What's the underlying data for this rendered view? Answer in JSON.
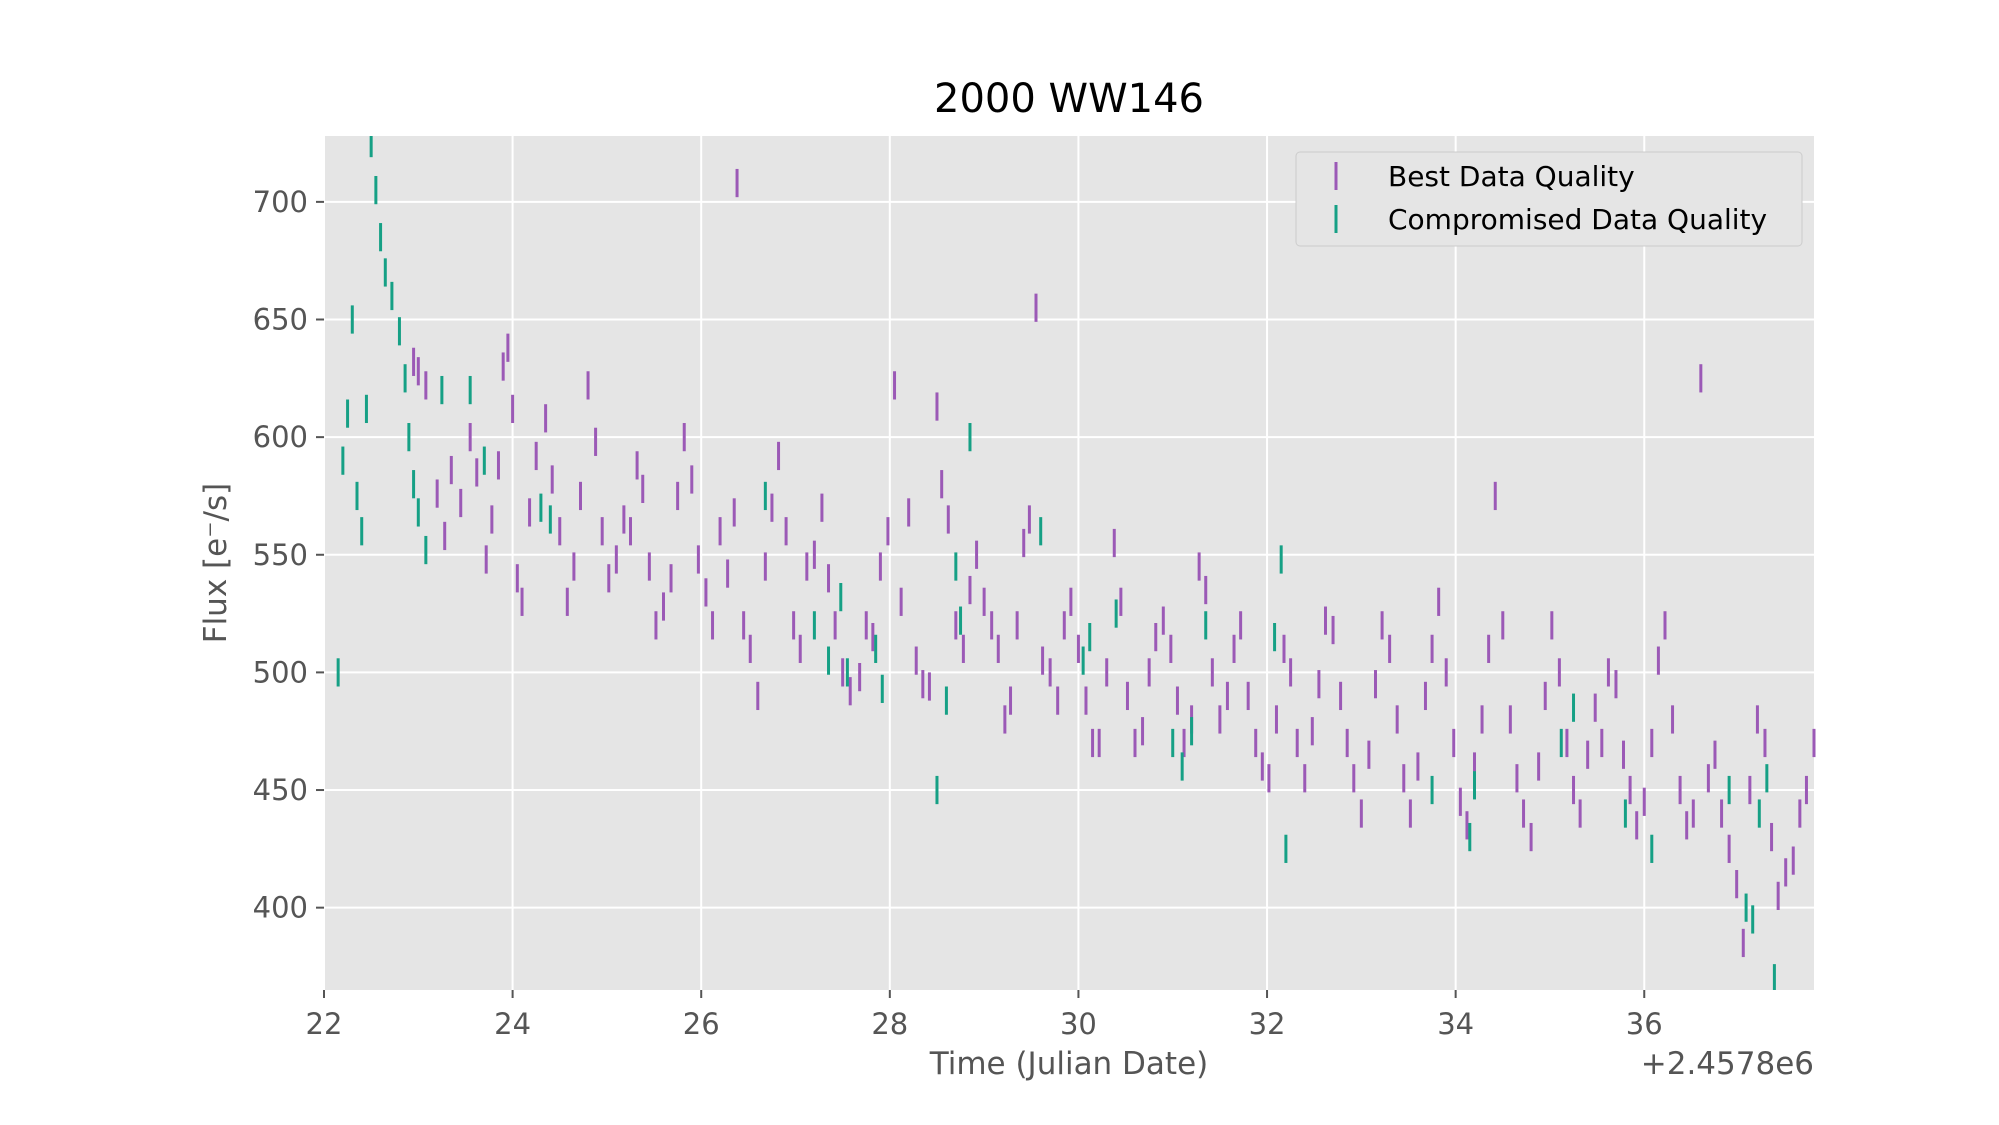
{
  "chart_data": {
    "type": "scatter",
    "title": "2000 WW146",
    "xlabel": "Time (Julian Date)",
    "ylabel": "Flux [e⁻/s]",
    "x_offset_label": "+2.4578e6",
    "xlim": [
      22.0,
      37.8
    ],
    "ylim": [
      365,
      728
    ],
    "x_ticks": [
      22,
      24,
      26,
      28,
      30,
      32,
      34,
      36
    ],
    "y_ticks": [
      400,
      450,
      500,
      550,
      600,
      650,
      700
    ],
    "grid": true,
    "legend": "top-right",
    "error_bar": 6,
    "series": [
      {
        "name": "Best Data Quality",
        "color": "#9b59b6",
        "points": [
          [
            22.95,
            632
          ],
          [
            23.0,
            628
          ],
          [
            23.08,
            622
          ],
          [
            23.2,
            576
          ],
          [
            23.28,
            558
          ],
          [
            23.35,
            586
          ],
          [
            23.45,
            572
          ],
          [
            23.55,
            600
          ],
          [
            23.62,
            585
          ],
          [
            23.72,
            548
          ],
          [
            23.78,
            565
          ],
          [
            23.85,
            588
          ],
          [
            23.9,
            630
          ],
          [
            23.95,
            638
          ],
          [
            24.0,
            612
          ],
          [
            24.05,
            540
          ],
          [
            24.1,
            530
          ],
          [
            24.18,
            568
          ],
          [
            24.25,
            592
          ],
          [
            24.35,
            608
          ],
          [
            24.42,
            582
          ],
          [
            24.5,
            560
          ],
          [
            24.58,
            530
          ],
          [
            24.65,
            545
          ],
          [
            24.72,
            575
          ],
          [
            24.8,
            622
          ],
          [
            24.88,
            598
          ],
          [
            24.95,
            560
          ],
          [
            25.02,
            540
          ],
          [
            25.1,
            548
          ],
          [
            25.18,
            565
          ],
          [
            25.25,
            560
          ],
          [
            25.32,
            588
          ],
          [
            25.38,
            578
          ],
          [
            25.45,
            545
          ],
          [
            25.52,
            520
          ],
          [
            25.6,
            528
          ],
          [
            25.68,
            540
          ],
          [
            25.75,
            575
          ],
          [
            25.82,
            600
          ],
          [
            25.9,
            582
          ],
          [
            25.97,
            548
          ],
          [
            26.05,
            534
          ],
          [
            26.12,
            520
          ],
          [
            26.2,
            560
          ],
          [
            26.28,
            542
          ],
          [
            26.35,
            568
          ],
          [
            26.38,
            708
          ],
          [
            26.45,
            520
          ],
          [
            26.52,
            510
          ],
          [
            26.6,
            490
          ],
          [
            26.68,
            545
          ],
          [
            26.75,
            570
          ],
          [
            26.82,
            592
          ],
          [
            26.9,
            560
          ],
          [
            26.98,
            520
          ],
          [
            27.05,
            510
          ],
          [
            27.12,
            545
          ],
          [
            27.2,
            550
          ],
          [
            27.28,
            570
          ],
          [
            27.35,
            540
          ],
          [
            27.42,
            520
          ],
          [
            27.5,
            500
          ],
          [
            27.58,
            492
          ],
          [
            27.68,
            498
          ],
          [
            27.75,
            520
          ],
          [
            27.82,
            515
          ],
          [
            27.9,
            545
          ],
          [
            27.98,
            560
          ],
          [
            28.05,
            622
          ],
          [
            28.12,
            530
          ],
          [
            28.2,
            568
          ],
          [
            28.28,
            505
          ],
          [
            28.35,
            495
          ],
          [
            28.42,
            494
          ],
          [
            28.5,
            613
          ],
          [
            28.55,
            580
          ],
          [
            28.62,
            565
          ],
          [
            28.7,
            520
          ],
          [
            28.78,
            510
          ],
          [
            28.85,
            535
          ],
          [
            28.92,
            550
          ],
          [
            29.0,
            530
          ],
          [
            29.08,
            520
          ],
          [
            29.15,
            510
          ],
          [
            29.22,
            480
          ],
          [
            29.28,
            488
          ],
          [
            29.35,
            520
          ],
          [
            29.42,
            555
          ],
          [
            29.48,
            565
          ],
          [
            29.55,
            655
          ],
          [
            29.62,
            505
          ],
          [
            29.7,
            500
          ],
          [
            29.78,
            488
          ],
          [
            29.85,
            520
          ],
          [
            29.92,
            530
          ],
          [
            30.0,
            510
          ],
          [
            30.08,
            488
          ],
          [
            30.15,
            470
          ],
          [
            30.22,
            470
          ],
          [
            30.3,
            500
          ],
          [
            30.38,
            555
          ],
          [
            30.45,
            530
          ],
          [
            30.52,
            490
          ],
          [
            30.6,
            470
          ],
          [
            30.68,
            475
          ],
          [
            30.75,
            500
          ],
          [
            30.82,
            515
          ],
          [
            30.9,
            522
          ],
          [
            30.98,
            510
          ],
          [
            31.05,
            488
          ],
          [
            31.12,
            470
          ],
          [
            31.2,
            480
          ],
          [
            31.28,
            545
          ],
          [
            31.35,
            535
          ],
          [
            31.42,
            500
          ],
          [
            31.5,
            480
          ],
          [
            31.58,
            490
          ],
          [
            31.65,
            510
          ],
          [
            31.72,
            520
          ],
          [
            31.8,
            490
          ],
          [
            31.88,
            470
          ],
          [
            31.95,
            460
          ],
          [
            32.02,
            455
          ],
          [
            32.1,
            480
          ],
          [
            32.18,
            510
          ],
          [
            32.25,
            500
          ],
          [
            32.32,
            470
          ],
          [
            32.4,
            455
          ],
          [
            32.48,
            475
          ],
          [
            32.55,
            495
          ],
          [
            32.62,
            522
          ],
          [
            32.7,
            518
          ],
          [
            32.78,
            490
          ],
          [
            32.85,
            470
          ],
          [
            32.92,
            455
          ],
          [
            33.0,
            440
          ],
          [
            33.08,
            465
          ],
          [
            33.15,
            495
          ],
          [
            33.22,
            520
          ],
          [
            33.3,
            510
          ],
          [
            33.38,
            480
          ],
          [
            33.45,
            455
          ],
          [
            33.52,
            440
          ],
          [
            33.6,
            460
          ],
          [
            33.68,
            490
          ],
          [
            33.75,
            510
          ],
          [
            33.82,
            530
          ],
          [
            33.9,
            500
          ],
          [
            33.98,
            470
          ],
          [
            34.05,
            445
          ],
          [
            34.12,
            435
          ],
          [
            34.2,
            460
          ],
          [
            34.28,
            480
          ],
          [
            34.35,
            510
          ],
          [
            34.42,
            575
          ],
          [
            34.5,
            520
          ],
          [
            34.58,
            480
          ],
          [
            34.65,
            455
          ],
          [
            34.72,
            440
          ],
          [
            34.8,
            430
          ],
          [
            34.88,
            460
          ],
          [
            34.95,
            490
          ],
          [
            35.02,
            520
          ],
          [
            35.1,
            500
          ],
          [
            35.18,
            470
          ],
          [
            35.25,
            450
          ],
          [
            35.32,
            440
          ],
          [
            35.4,
            465
          ],
          [
            35.48,
            485
          ],
          [
            35.55,
            470
          ],
          [
            35.62,
            500
          ],
          [
            35.7,
            495
          ],
          [
            35.78,
            465
          ],
          [
            35.85,
            450
          ],
          [
            35.92,
            435
          ],
          [
            36.0,
            445
          ],
          [
            36.08,
            470
          ],
          [
            36.15,
            505
          ],
          [
            36.22,
            520
          ],
          [
            36.3,
            480
          ],
          [
            36.38,
            450
          ],
          [
            36.45,
            435
          ],
          [
            36.52,
            440
          ],
          [
            36.6,
            625
          ],
          [
            36.68,
            455
          ],
          [
            36.75,
            465
          ],
          [
            36.82,
            440
          ],
          [
            36.9,
            425
          ],
          [
            36.98,
            410
          ],
          [
            37.05,
            385
          ],
          [
            37.12,
            450
          ],
          [
            37.2,
            480
          ],
          [
            37.28,
            470
          ],
          [
            37.35,
            430
          ],
          [
            37.42,
            405
          ],
          [
            37.5,
            415
          ],
          [
            37.58,
            420
          ],
          [
            37.65,
            440
          ],
          [
            37.72,
            450
          ],
          [
            37.8,
            470
          ]
        ]
      },
      {
        "name": "Compromised Data Quality",
        "color": "#16a085",
        "points": [
          [
            22.15,
            500
          ],
          [
            22.2,
            590
          ],
          [
            22.25,
            610
          ],
          [
            22.3,
            650
          ],
          [
            22.35,
            575
          ],
          [
            22.4,
            560
          ],
          [
            22.45,
            612
          ],
          [
            22.5,
            725
          ],
          [
            22.55,
            705
          ],
          [
            22.6,
            685
          ],
          [
            22.65,
            670
          ],
          [
            22.72,
            660
          ],
          [
            22.8,
            645
          ],
          [
            22.86,
            625
          ],
          [
            22.9,
            600
          ],
          [
            22.95,
            580
          ],
          [
            23.0,
            568
          ],
          [
            23.08,
            552
          ],
          [
            23.25,
            620
          ],
          [
            23.55,
            620
          ],
          [
            23.7,
            590
          ],
          [
            24.3,
            570
          ],
          [
            24.4,
            565
          ],
          [
            26.68,
            575
          ],
          [
            27.2,
            520
          ],
          [
            27.35,
            505
          ],
          [
            27.48,
            532
          ],
          [
            27.55,
            500
          ],
          [
            27.85,
            510
          ],
          [
            27.92,
            493
          ],
          [
            28.5,
            450
          ],
          [
            28.6,
            488
          ],
          [
            28.7,
            545
          ],
          [
            28.75,
            522
          ],
          [
            28.85,
            600
          ],
          [
            29.6,
            560
          ],
          [
            30.05,
            505
          ],
          [
            30.12,
            515
          ],
          [
            30.4,
            525
          ],
          [
            31.0,
            470
          ],
          [
            31.1,
            460
          ],
          [
            31.2,
            475
          ],
          [
            31.35,
            520
          ],
          [
            32.08,
            515
          ],
          [
            32.15,
            548
          ],
          [
            32.2,
            425
          ],
          [
            33.75,
            450
          ],
          [
            34.15,
            430
          ],
          [
            34.2,
            452
          ],
          [
            35.12,
            470
          ],
          [
            35.25,
            485
          ],
          [
            35.8,
            440
          ],
          [
            36.08,
            425
          ],
          [
            36.9,
            450
          ],
          [
            37.08,
            400
          ],
          [
            37.15,
            395
          ],
          [
            37.22,
            440
          ],
          [
            37.3,
            455
          ],
          [
            37.38,
            370
          ]
        ]
      }
    ]
  }
}
